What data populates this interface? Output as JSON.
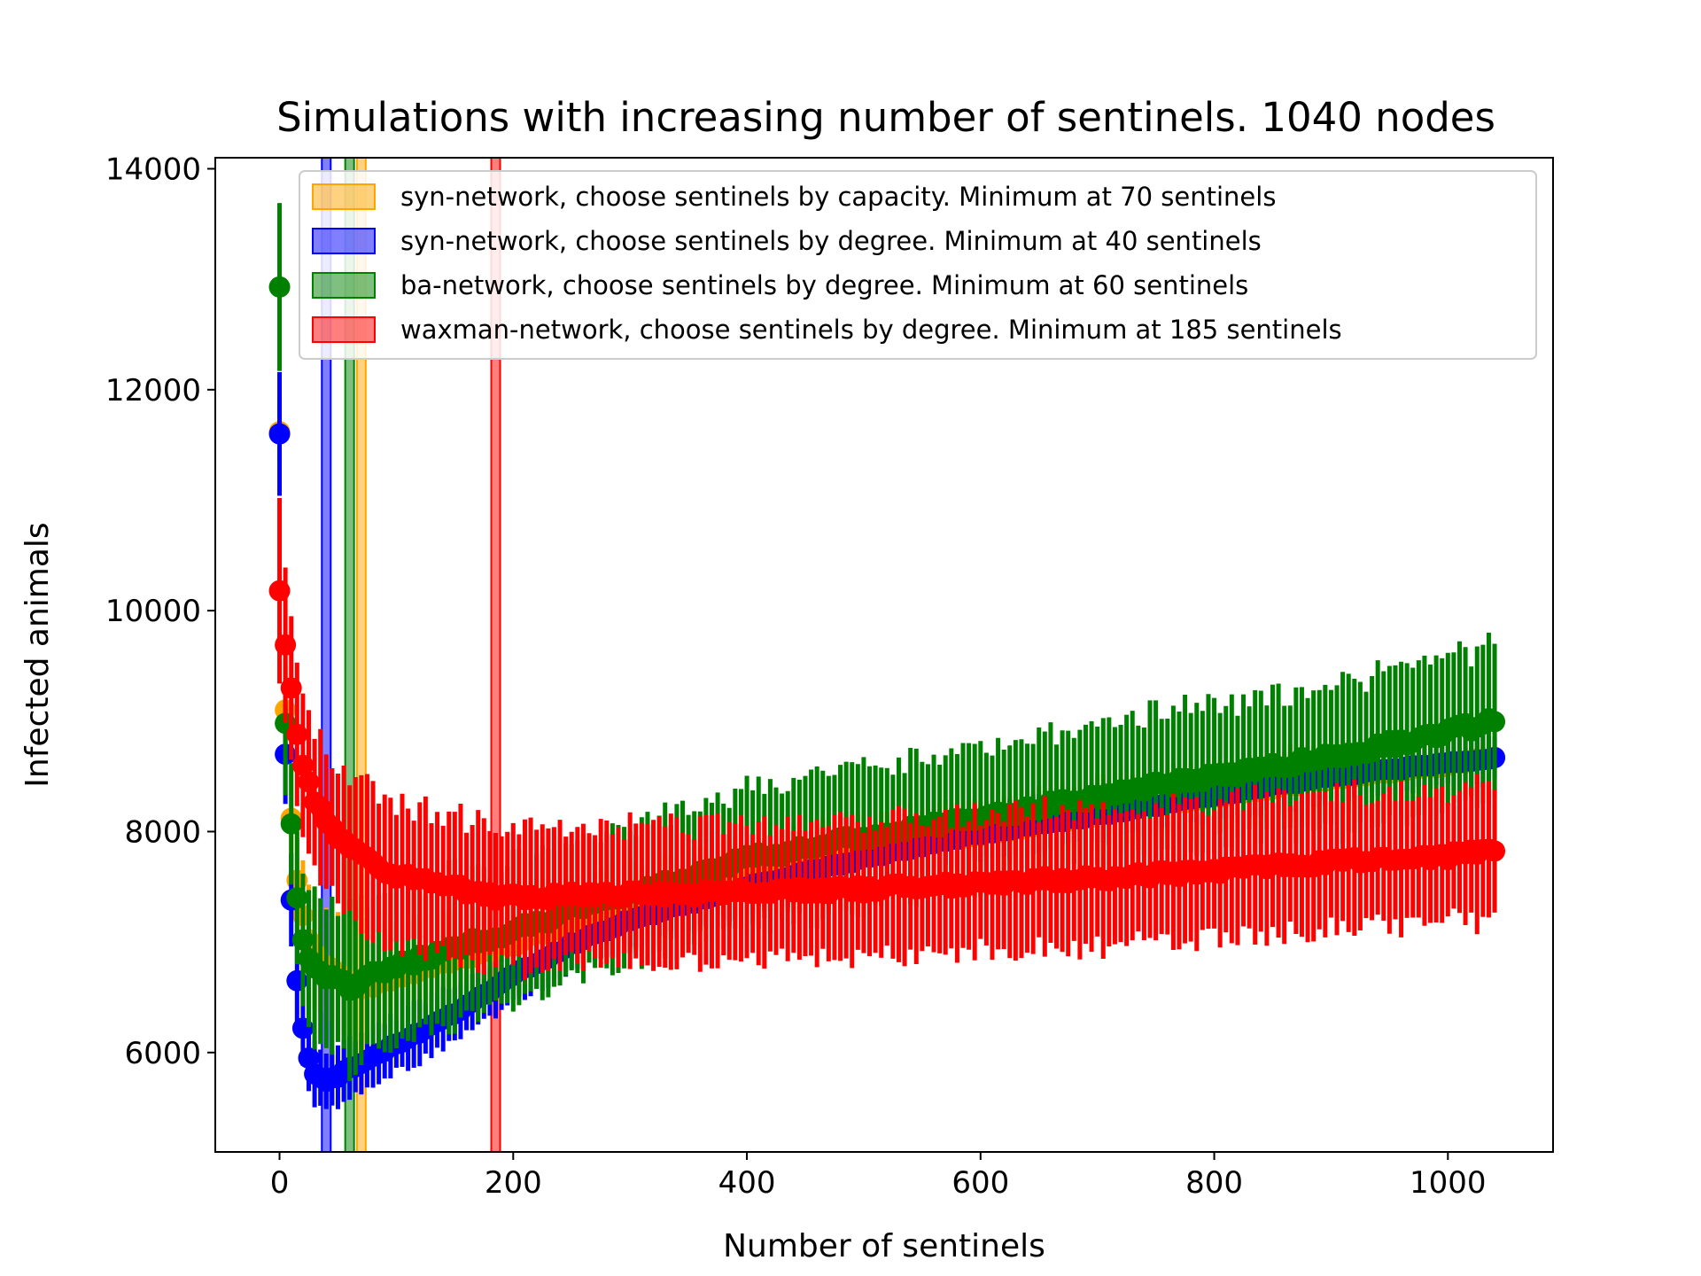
{
  "chart_data": {
    "type": "scatter",
    "title": "Simulations with increasing number of sentinels. 1040 nodes",
    "xlabel": "Number of sentinels",
    "ylabel": "Infected animals",
    "xlim": [
      -55,
      1090
    ],
    "ylim": [
      5100,
      14100
    ],
    "xticks": [
      0,
      200,
      400,
      600,
      800,
      1000
    ],
    "yticks": [
      6000,
      8000,
      10000,
      12000,
      14000
    ],
    "grid": false,
    "legend_position": "top-right",
    "series": [
      {
        "name": "syn-network, choose sentinels by capacity. Minimum at 70 sentinels",
        "color": "#ffa500",
        "vline_x": 70,
        "points": [
          [
            0,
            11620,
            300
          ],
          [
            5,
            9100,
            420
          ],
          [
            10,
            8120,
            450
          ],
          [
            15,
            7560,
            480
          ],
          [
            20,
            7240,
            500
          ],
          [
            25,
            7020,
            500
          ],
          [
            30,
            6900,
            520
          ],
          [
            40,
            6780,
            540
          ],
          [
            50,
            6700,
            560
          ],
          [
            60,
            6640,
            560
          ],
          [
            70,
            6600,
            560
          ],
          [
            80,
            6620,
            540
          ],
          [
            100,
            6680,
            520
          ],
          [
            150,
            6840,
            480
          ],
          [
            200,
            6980,
            440
          ],
          [
            250,
            7170,
            400
          ],
          [
            300,
            7350,
            380
          ],
          [
            400,
            7600,
            360
          ],
          [
            500,
            7800,
            340
          ],
          [
            600,
            7980,
            330
          ],
          [
            700,
            8150,
            320
          ],
          [
            800,
            8320,
            310
          ],
          [
            900,
            8480,
            300
          ],
          [
            1000,
            8600,
            300
          ],
          [
            1040,
            8680,
            300
          ]
        ]
      },
      {
        "name": "syn-network, choose sentinels by degree. Minimum at 40 sentinels",
        "color": "#0000ff",
        "vline_x": 40,
        "points": [
          [
            0,
            11600,
            560
          ],
          [
            5,
            8700,
            450
          ],
          [
            10,
            7380,
            420
          ],
          [
            15,
            6650,
            380
          ],
          [
            20,
            6220,
            340
          ],
          [
            25,
            5950,
            300
          ],
          [
            30,
            5820,
            280
          ],
          [
            40,
            5730,
            260
          ],
          [
            50,
            5790,
            260
          ],
          [
            60,
            5860,
            260
          ],
          [
            80,
            5950,
            260
          ],
          [
            100,
            6080,
            260
          ],
          [
            150,
            6350,
            260
          ],
          [
            200,
            6700,
            260
          ],
          [
            250,
            6980,
            260
          ],
          [
            300,
            7200,
            250
          ],
          [
            400,
            7500,
            250
          ],
          [
            500,
            7760,
            250
          ],
          [
            600,
            7980,
            240
          ],
          [
            700,
            8150,
            240
          ],
          [
            800,
            8320,
            230
          ],
          [
            900,
            8500,
            220
          ],
          [
            1000,
            8620,
            220
          ],
          [
            1040,
            8660,
            220
          ]
        ]
      },
      {
        "name": "ba-network, choose sentinels by degree. Minimum at 60 sentinels",
        "color": "#008000",
        "vline_x": 60,
        "points": [
          [
            0,
            12930,
            760
          ],
          [
            5,
            8980,
            650
          ],
          [
            10,
            8070,
            550
          ],
          [
            15,
            7400,
            600
          ],
          [
            20,
            7020,
            600
          ],
          [
            25,
            6850,
            620
          ],
          [
            30,
            6760,
            640
          ],
          [
            40,
            6700,
            660
          ],
          [
            50,
            6650,
            680
          ],
          [
            60,
            6600,
            700
          ],
          [
            80,
            6700,
            700
          ],
          [
            100,
            6780,
            700
          ],
          [
            150,
            6950,
            680
          ],
          [
            200,
            7100,
            660
          ],
          [
            250,
            7280,
            640
          ],
          [
            300,
            7450,
            620
          ],
          [
            400,
            7750,
            620
          ],
          [
            500,
            7950,
            630
          ],
          [
            600,
            8120,
            640
          ],
          [
            700,
            8320,
            650
          ],
          [
            800,
            8500,
            660
          ],
          [
            900,
            8680,
            670
          ],
          [
            1000,
            8900,
            680
          ],
          [
            1040,
            9000,
            680
          ]
        ]
      },
      {
        "name": "waxman-network, choose sentinels by degree. Minimum at 185 sentinels",
        "color": "#ff0000",
        "vline_x": 185,
        "points": [
          [
            0,
            10180,
            840
          ],
          [
            5,
            9690,
            700
          ],
          [
            10,
            9300,
            650
          ],
          [
            15,
            8880,
            650
          ],
          [
            20,
            8600,
            650
          ],
          [
            30,
            8300,
            650
          ],
          [
            40,
            8100,
            650
          ],
          [
            50,
            7950,
            640
          ],
          [
            60,
            7850,
            640
          ],
          [
            80,
            7700,
            640
          ],
          [
            100,
            7600,
            640
          ],
          [
            150,
            7500,
            630
          ],
          [
            185,
            7400,
            630
          ],
          [
            200,
            7420,
            620
          ],
          [
            250,
            7420,
            620
          ],
          [
            300,
            7430,
            620
          ],
          [
            400,
            7450,
            620
          ],
          [
            500,
            7480,
            620
          ],
          [
            600,
            7530,
            620
          ],
          [
            700,
            7580,
            620
          ],
          [
            800,
            7650,
            620
          ],
          [
            900,
            7720,
            620
          ],
          [
            1000,
            7780,
            620
          ],
          [
            1040,
            7860,
            620
          ]
        ]
      }
    ]
  }
}
